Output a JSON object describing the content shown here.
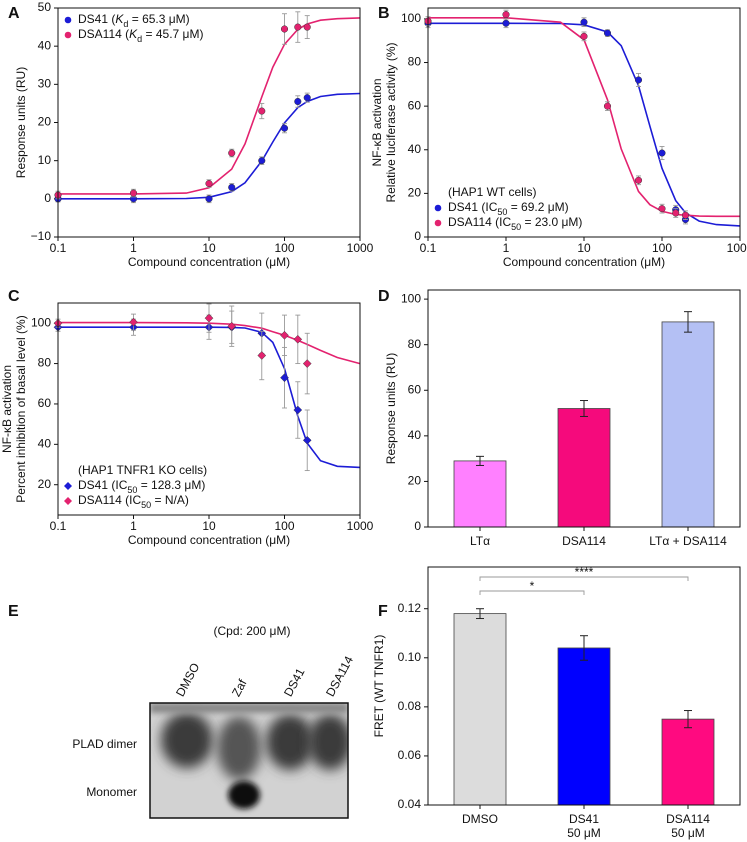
{
  "chart_data": [
    {
      "panel": "A",
      "type": "scatter",
      "xscale": "log",
      "x": [
        0.1,
        1,
        10,
        20,
        50,
        100,
        150,
        200
      ],
      "xlim": [
        0.1,
        1000
      ],
      "xticks": [
        0.1,
        1,
        10,
        100,
        1000
      ],
      "ylim": [
        -10,
        50
      ],
      "yticks": [
        {
          "value": -10,
          "label": "−10"
        },
        0,
        10,
        20,
        30,
        40,
        50
      ],
      "xlabel": "Compound concentration (μM)",
      "ylabel": "Response units (RU)",
      "legend": "upper left",
      "series": [
        {
          "name": "DS41 (Kd = 65.3 μM)",
          "color": "#1c1cd6",
          "marker": "circle",
          "values": [
            0,
            0,
            0,
            3,
            10,
            18.5,
            25.5,
            26.5
          ],
          "errors": [
            0.8,
            1,
            1,
            1,
            1,
            1.2,
            1.5,
            1.2
          ],
          "fit": {
            "x": [
              0.1,
              1,
              5,
              10,
              20,
              30,
              50,
              70,
              100,
              150,
              200,
              300,
              500,
              1000
            ],
            "y": [
              0,
              0,
              0.1,
              0.4,
              1.9,
              4.2,
              9.9,
              14.9,
              19.9,
              23.9,
              25.5,
              26.8,
              27.4,
              27.6
            ]
          }
        },
        {
          "name": "DSA114 (Kd = 45.7 μM)",
          "color": "#e3226f",
          "marker": "circle",
          "values": [
            1,
            1.5,
            4,
            12,
            23,
            44.5,
            45,
            45
          ],
          "errors": [
            1,
            1,
            1,
            1,
            2,
            4,
            4,
            3
          ],
          "fit": {
            "x": [
              0.1,
              1,
              5,
              10,
              20,
              30,
              50,
              70,
              100,
              150,
              200,
              300,
              500,
              1000
            ],
            "y": [
              1.3,
              1.3,
              1.5,
              2.9,
              7.8,
              14.4,
              26.7,
              34.5,
              40.5,
              44.4,
              45.8,
              46.8,
              47.2,
              47.4
            ]
          }
        }
      ]
    },
    {
      "panel": "B",
      "type": "scatter",
      "xscale": "log",
      "x": [
        0.1,
        1,
        10,
        20,
        50,
        100,
        150,
        200
      ],
      "xlim": [
        0.1,
        1000
      ],
      "xticks": [
        0.1,
        1,
        10,
        100,
        1000
      ],
      "ylim": [
        0,
        105
      ],
      "yticks": [
        0,
        20,
        40,
        60,
        80,
        100
      ],
      "xlabel": "Compound concentration (μM)",
      "ylabel": [
        "NF-κB activation",
        "Relative luciferase activity (%)"
      ],
      "legend": "lower left",
      "legend_title": "(HAP1 WT cells)",
      "series": [
        {
          "name": "DS41 (IC50 = 69.2 μM)",
          "color": "#1c1cd6",
          "marker": "circle",
          "values": [
            98,
            98,
            98.5,
            93.5,
            72,
            38.5,
            12.5,
            8
          ],
          "errors": [
            2,
            2,
            2,
            1.5,
            3,
            3,
            2,
            2
          ],
          "fit": {
            "x": [
              0.1,
              1,
              5,
              10,
              20,
              30,
              50,
              70,
              100,
              150,
              200,
              300,
              500,
              1000
            ],
            "y": [
              98,
              98,
              97.9,
              97.3,
              94,
              87.7,
              69.4,
              50.8,
              31.5,
              16.7,
              11.1,
              7.3,
              5.7,
              5.1
            ]
          }
        },
        {
          "name": "DSA114 (IC50 = 23.0 μM)",
          "color": "#e3226f",
          "marker": "circle",
          "values": [
            99,
            102,
            92,
            60,
            26,
            13,
            11,
            10
          ],
          "errors": [
            2,
            2,
            2,
            2,
            2,
            2,
            2,
            2
          ],
          "fit": {
            "x": [
              0.1,
              1,
              5,
              10,
              20,
              30,
              50,
              70,
              100,
              150,
              200,
              300,
              500,
              1000
            ],
            "y": [
              100.5,
              100.5,
              98.5,
              90.4,
              62.9,
              40.4,
              20.9,
              14.8,
              11.8,
              10.3,
              10,
              9.6,
              9.5,
              9.5
            ]
          }
        }
      ]
    },
    {
      "panel": "C",
      "type": "scatter",
      "xscale": "log",
      "x": [
        0.1,
        1,
        10,
        20,
        50,
        100,
        150,
        200
      ],
      "xlim": [
        0.1,
        1000
      ],
      "xticks": [
        0.1,
        1,
        10,
        100,
        1000
      ],
      "ylim": [
        5,
        110
      ],
      "yticks": [
        20,
        40,
        60,
        80,
        100
      ],
      "xlabel": "Compound concentration (μM)",
      "ylabel": [
        "NF-κB activation",
        "Percent inhibition of basal level (%)"
      ],
      "legend": "lower left",
      "legend_title": "(HAP1 TNFR1 KO cells)",
      "series": [
        {
          "name": "DS41 (IC50 = 128.3 μM)",
          "color": "#1c1cd6",
          "marker": "diamond",
          "values": [
            98,
            98,
            98,
            98,
            95,
            73,
            57,
            42
          ],
          "errors": [
            2,
            4,
            6,
            8,
            10,
            15,
            14,
            15
          ],
          "fit": {
            "x": [
              0.1,
              1,
              5,
              10,
              20,
              30,
              50,
              70,
              100,
              150,
              200,
              300,
              500,
              1000
            ],
            "y": [
              98,
              98,
              98,
              98,
              97.9,
              97.6,
              95.5,
              90.5,
              77.5,
              54,
              40.6,
              31.9,
              29.1,
              28.6
            ]
          }
        },
        {
          "name": "DSA114 (IC50 = N/A)",
          "color": "#e3226f",
          "marker": "diamond",
          "values": [
            100,
            100.5,
            102.5,
            98.5,
            84,
            94,
            92,
            80
          ],
          "errors": [
            2,
            4,
            7,
            10,
            12,
            10,
            12,
            15
          ],
          "fit": {
            "x": [
              0.1,
              1,
              5,
              10,
              20,
              30,
              50,
              70,
              100,
              150,
              200,
              300,
              500,
              1000
            ],
            "y": [
              100.3,
              100.3,
              100.2,
              100,
              99.5,
              98.8,
              97.5,
              95.8,
              94,
              91.5,
              89.5,
              86.5,
              83,
              80
            ]
          }
        }
      ]
    },
    {
      "panel": "D",
      "type": "bar",
      "categories": [
        "LTα",
        "DSA114",
        "LTα + DSA114"
      ],
      "values": [
        29,
        52,
        90
      ],
      "errors": [
        2,
        3.5,
        4.5
      ],
      "colors": [
        "#ff80ff",
        "#f50a7c",
        "#b4c0f4"
      ],
      "ylim": [
        0,
        104
      ],
      "yticks": [
        0,
        20,
        40,
        60,
        80,
        100
      ],
      "ylabel": "Response units (RU)"
    },
    {
      "panel": "E",
      "type": "gel",
      "title": "(Cpd: 200 μM)",
      "lanes": [
        "DMSO",
        "Zaf",
        "DS41",
        "DSA114"
      ],
      "bands": [
        "PLAD dimer",
        "Monomer"
      ]
    },
    {
      "panel": "F",
      "type": "bar",
      "categories": [
        "DMSO",
        "DS41",
        "DSA114"
      ],
      "sublabels": [
        null,
        "50 μM",
        "50 μM"
      ],
      "values": [
        0.118,
        0.104,
        0.075
      ],
      "errors": [
        0.002,
        0.005,
        0.0035
      ],
      "colors": [
        "#dcdcdc",
        "#0000ff",
        "#ff0a80"
      ],
      "ylim": [
        0.04,
        0.137
      ],
      "yticks": [
        0.04,
        0.06,
        0.08,
        {
          "value": 0.1,
          "label": "0.10"
        },
        0.12
      ],
      "ylabel": "FRET (WT TNFR1)",
      "annotations": [
        {
          "from": 0,
          "to": 2,
          "label": "****"
        },
        {
          "from": 0,
          "to": 1,
          "label": "*"
        }
      ]
    }
  ]
}
